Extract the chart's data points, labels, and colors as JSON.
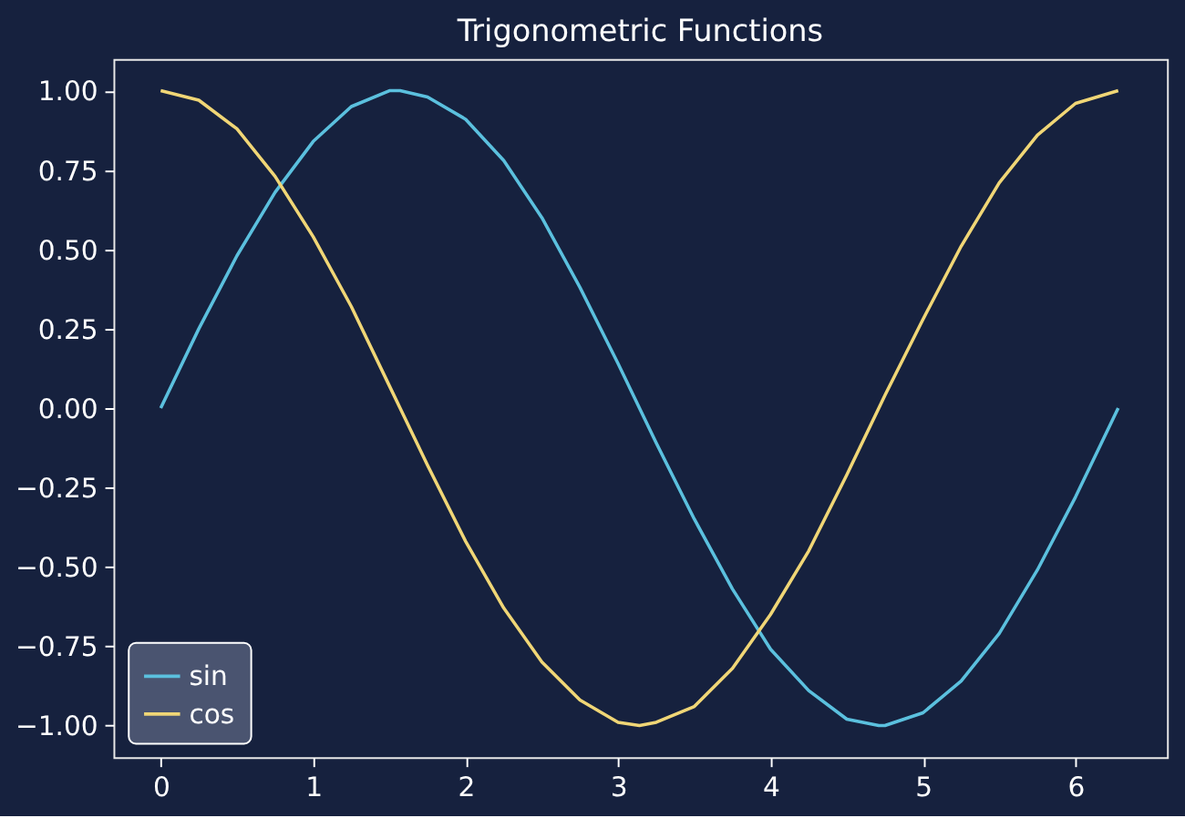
{
  "chart_data": {
    "type": "line",
    "title": "Trigonometric Functions",
    "x": [
      0,
      0.25,
      0.5,
      0.75,
      1,
      1.25,
      1.5,
      1.57,
      1.75,
      2,
      2.25,
      2.5,
      2.75,
      3,
      3.14,
      3.25,
      3.5,
      3.75,
      4,
      4.25,
      4.5,
      4.71,
      4.75,
      5,
      5.25,
      5.5,
      5.75,
      6,
      6.28
    ],
    "series": [
      {
        "name": "sin",
        "color": "#5bc0de",
        "values": [
          0,
          0.25,
          0.48,
          0.68,
          0.84,
          0.95,
          1.0,
          1.0,
          0.98,
          0.91,
          0.78,
          0.6,
          0.38,
          0.14,
          0,
          -0.11,
          -0.35,
          -0.57,
          -0.76,
          -0.89,
          -0.98,
          -1.0,
          -1.0,
          -0.96,
          -0.86,
          -0.71,
          -0.51,
          -0.28,
          0
        ]
      },
      {
        "name": "cos",
        "color": "#f0d676",
        "values": [
          1,
          0.97,
          0.88,
          0.73,
          0.54,
          0.32,
          0.07,
          0,
          -0.18,
          -0.42,
          -0.63,
          -0.8,
          -0.92,
          -0.99,
          -1.0,
          -0.99,
          -0.94,
          -0.82,
          -0.65,
          -0.45,
          -0.21,
          0,
          0.04,
          0.28,
          0.51,
          0.71,
          0.86,
          0.96,
          1
        ]
      }
    ],
    "xlim": [
      -0.31,
      6.6
    ],
    "xticks": [
      0,
      1,
      2,
      3,
      4,
      5,
      6
    ],
    "ylim": [
      -1.1,
      1.1
    ],
    "yticks": [
      {
        "value": -1,
        "label": "−1.00"
      },
      {
        "value": -0.75,
        "label": "−0.75"
      },
      {
        "value": -0.5,
        "label": "−0.50"
      },
      {
        "value": -0.25,
        "label": "−0.25"
      },
      {
        "value": 0,
        "label": "0.00"
      },
      {
        "value": 0.25,
        "label": "0.25"
      },
      {
        "value": 0.5,
        "label": "0.50"
      },
      {
        "value": 0.75,
        "label": "0.75"
      },
      {
        "value": 1,
        "label": "1.00"
      }
    ],
    "grid": false,
    "legend": "bottom left",
    "marker": "none",
    "line_style": "solid"
  }
}
